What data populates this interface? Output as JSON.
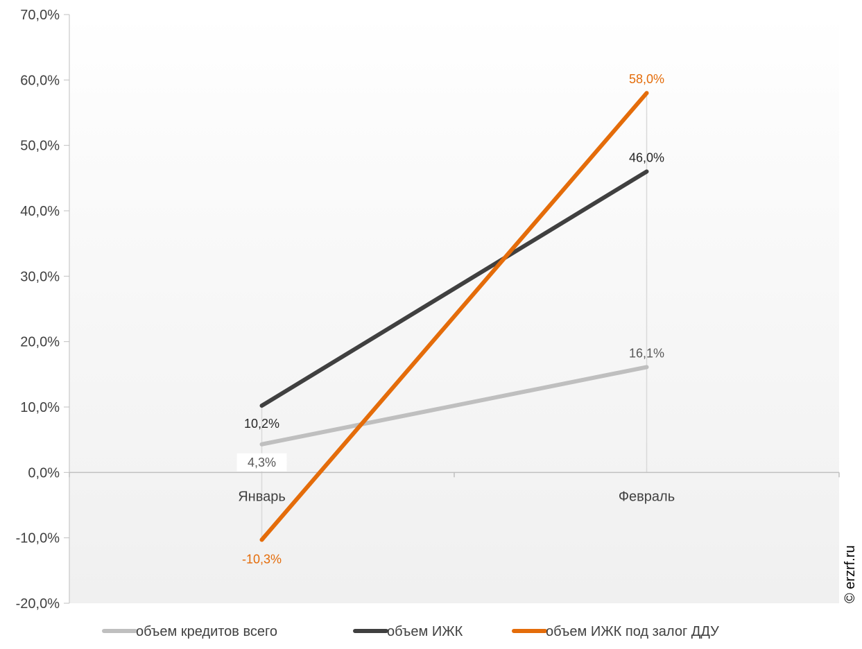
{
  "chart_data": {
    "type": "line",
    "categories": [
      "Январь",
      "Февраль"
    ],
    "series": [
      {
        "name": "объем кредитов всего",
        "values": [
          4.3,
          16.1
        ],
        "labels": [
          "4,3%",
          "16,1%"
        ],
        "color": "#BFBFBF"
      },
      {
        "name": "объем ИЖК",
        "values": [
          10.2,
          46.0
        ],
        "labels": [
          "10,2%",
          "46,0%"
        ],
        "color": "#404040"
      },
      {
        "name": "объем ИЖК под залог ДДУ",
        "values": [
          -10.3,
          58.0
        ],
        "labels": [
          "-10,3%",
          "58,0%"
        ],
        "color": "#E46C0A"
      }
    ],
    "ylim": [
      -20,
      70
    ],
    "yticks": [
      -20,
      -10,
      0,
      10,
      20,
      30,
      40,
      50,
      60,
      70
    ],
    "ytick_labels": [
      "-20,0%",
      "-10,0%",
      "0,0%",
      "10,0%",
      "20,0%",
      "30,0%",
      "40,0%",
      "50,0%",
      "60,0%",
      "70,0%"
    ],
    "legend_position": "bottom",
    "grid": false
  },
  "watermark": "© erzrf.ru"
}
